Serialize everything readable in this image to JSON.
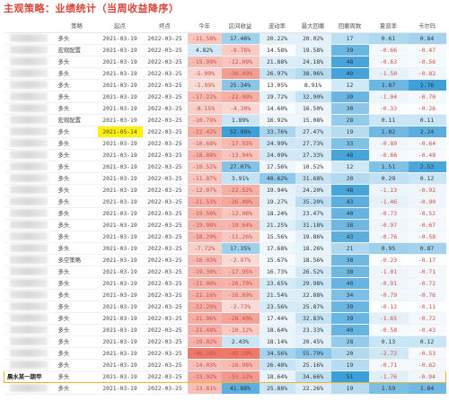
{
  "title": "主观策略：业绩统计（当周收益降序）",
  "headers": [
    "",
    "策略",
    "起点",
    "终点",
    "今年",
    "区间收益",
    "波动率",
    "最大回撤",
    "回撤周数",
    "夏普率",
    "卡尔玛"
  ],
  "rows": [
    {
      "name": "",
      "tag": "多头",
      "start": "2021-03-19",
      "end": "2022-03-25",
      "ytd": "-11.58%",
      "ret": "17.46%",
      "vol": "20.22%",
      "mdd": "20.02%",
      "weeks": "17",
      "sharpe": "0.61",
      "calmar": "0.84"
    },
    {
      "name": "",
      "tag": "宏观配置",
      "start": "2021-03-19",
      "end": "2022-03-25",
      "ytd": "4.82%",
      "ret": "-9.76%",
      "vol": "14.58%",
      "mdd": "19.58%",
      "weeks": "39",
      "sharpe": "-0.66",
      "calmar": "-0.47"
    },
    {
      "name": "",
      "tag": "多头",
      "start": "2021-03-19",
      "end": "2022-03-25",
      "ytd": "-15.99%",
      "ret": "-12.99%",
      "vol": "21.88%",
      "mdd": "24.18%",
      "weeks": "48",
      "sharpe": "-0.63",
      "calmar": "-0.56"
    },
    {
      "name": "",
      "tag": "多头",
      "start": "2021-03-19",
      "end": "2022-03-25",
      "ytd": "-5.99%",
      "ret": "-30.49%",
      "vol": "26.97%",
      "mdd": "38.96%",
      "weeks": "49",
      "sharpe": "-1.50",
      "calmar": "-0.82"
    },
    {
      "name": "",
      "tag": "多头",
      "start": "2021-03-19",
      "end": "2022-03-25",
      "ytd": "-1.99%",
      "ret": "25.34%",
      "vol": "13.05%",
      "mdd": "8.91%",
      "weeks": "12",
      "sharpe": "1.87",
      "calmar": "2.76"
    },
    {
      "name": "",
      "tag": "多头",
      "start": "2021-03-19",
      "end": "2022-03-25",
      "ytd": "-17.22%",
      "ret": "-22.99%",
      "vol": "19.72%",
      "mdd": "32.90%",
      "weeks": "39",
      "sharpe": "-1.04",
      "calmar": "-0.70"
    },
    {
      "name": "",
      "tag": "多头",
      "start": "2021-03-19",
      "end": "2022-03-25",
      "ytd": "-8.15%",
      "ret": "-4.30%",
      "vol": "14.60%",
      "mdd": "16.50%",
      "weeks": "30",
      "sharpe": "-0.33",
      "calmar": "-0.26"
    },
    {
      "name": "",
      "tag": "宏观配置",
      "start": "2021-03-19",
      "end": "2022-03-25",
      "ytd": "-10.79%",
      "ret": "1.89%",
      "vol": "16.92%",
      "mdd": "15.08%",
      "weeks": "28",
      "sharpe": "0.11",
      "calmar": "0.11"
    },
    {
      "name": "",
      "tag": "多头",
      "start": "2021-05-14",
      "end": "2022-03-25",
      "ytd": "-22.42%",
      "ret": "52.98%",
      "vol": "33.76%",
      "mdd": "27.47%",
      "weeks": "19",
      "sharpe": "1.82",
      "calmar": "2.24"
    },
    {
      "name": "",
      "tag": "多头",
      "start": "2021-03-19",
      "end": "2022-03-25",
      "ytd": "-10.68%",
      "ret": "-17.93%",
      "vol": "24.99%",
      "mdd": "27.73%",
      "weeks": "33",
      "sharpe": "-0.89",
      "calmar": "-0.64"
    },
    {
      "name": "",
      "tag": "多头",
      "start": "2021-03-19",
      "end": "2022-03-25",
      "ytd": "-18.88%",
      "ret": "-13.04%",
      "vol": "24.09%",
      "mdd": "27.33%",
      "weeks": "48",
      "sharpe": "-0.66",
      "calmar": "-0.48"
    },
    {
      "name": "",
      "tag": "多头",
      "start": "2021-03-19",
      "end": "2022-03-25",
      "ytd": "-10.52%",
      "ret": "27.07%",
      "vol": "17.56%",
      "mdd": "10.52%",
      "weeks": "12",
      "sharpe": "1.51",
      "calmar": "2.53"
    },
    {
      "name": "",
      "tag": "多头",
      "start": "2021-03-19",
      "end": "2022-03-25",
      "ytd": "-11.87%",
      "ret": "3.91%",
      "vol": "40.62%",
      "mdd": "31.68%",
      "weeks": "20",
      "sharpe": "0.29",
      "calmar": "0.12"
    },
    {
      "name": "",
      "tag": "多头",
      "start": "2021-03-19",
      "end": "2022-03-25",
      "ytd": "-12.07%",
      "ret": "-22.52%",
      "vol": "19.94%",
      "mdd": "24.20%",
      "weeks": "48",
      "sharpe": "-1.13",
      "calmar": "-0.92"
    },
    {
      "name": "",
      "tag": "多头",
      "start": "2021-03-19",
      "end": "2022-03-25",
      "ytd": "-21.53%",
      "ret": "-26.49%",
      "vol": "19.27%",
      "mdd": "35.20%",
      "weeks": "43",
      "sharpe": "-1.46",
      "calmar": "-0.90"
    },
    {
      "name": "",
      "tag": "多头",
      "start": "2021-03-19",
      "end": "2022-03-25",
      "ytd": "-19.50%",
      "ret": "-12.06%",
      "vol": "18.24%",
      "mdd": "23.47%",
      "weeks": "40",
      "sharpe": "-0.73",
      "calmar": "-0.52"
    },
    {
      "name": "",
      "tag": "多头",
      "start": "2021-03-19",
      "end": "2022-03-25",
      "ytd": "-19.98%",
      "ret": "-19.64%",
      "vol": "21.25%",
      "mdd": "31.18%",
      "weeks": "38",
      "sharpe": "-0.97",
      "calmar": "-0.67"
    },
    {
      "name": "",
      "tag": "多头",
      "start": "2021-03-19",
      "end": "2022-03-25",
      "ytd": "-18.29%",
      "ret": "-11.26%",
      "vol": "15.56%",
      "mdd": "19.86%",
      "weeks": "43",
      "sharpe": "-0.76",
      "calmar": "-0.58"
    },
    {
      "name": "",
      "tag": "多头",
      "start": "2021-03-19",
      "end": "2022-03-25",
      "ytd": "-7.72%",
      "ret": "17.35%",
      "vol": "17.68%",
      "mdd": "18.26%",
      "weeks": "21",
      "sharpe": "0.95",
      "calmar": "0.87"
    },
    {
      "name": "",
      "tag": "多空策略",
      "start": "2021-03-19",
      "end": "2022-03-25",
      "ytd": "-16.03%",
      "ret": "-2.97%",
      "vol": "15.67%",
      "mdd": "18.56%",
      "weeks": "38",
      "sharpe": "-0.23",
      "calmar": "-0.17"
    },
    {
      "name": "",
      "tag": "多头",
      "start": "2021-03-19",
      "end": "2022-03-25",
      "ytd": "-19.30%",
      "ret": "-17.95%",
      "vol": "16.73%",
      "mdd": "26.52%",
      "weeks": "38",
      "sharpe": "-1.01",
      "calmar": "-0.71"
    },
    {
      "name": "",
      "tag": "多头",
      "start": "2021-03-19",
      "end": "2022-03-25",
      "ytd": "-21.00%",
      "ret": "-20.79%",
      "vol": "23.65%",
      "mdd": "29.98%",
      "weeks": "40",
      "sharpe": "-0.91",
      "calmar": "-0.72"
    },
    {
      "name": "",
      "tag": "多头",
      "start": "2021-03-19",
      "end": "2022-03-25",
      "ytd": "-21.16%",
      "ret": "-16.89%",
      "vol": "21.54%",
      "mdd": "22.88%",
      "weeks": "34",
      "sharpe": "-0.79",
      "calmar": "-0.76"
    },
    {
      "name": "",
      "tag": "多头",
      "start": "2021-03-19",
      "end": "2022-03-25",
      "ytd": "-22.29%",
      "ret": "-2.73%",
      "vol": "23.56%",
      "mdd": "25.87%",
      "weeks": "39",
      "sharpe": "-0.12",
      "calmar": "-0.11"
    },
    {
      "name": "",
      "tag": "多头",
      "start": "2021-03-19",
      "end": "2022-03-25",
      "ytd": "-21.96%",
      "ret": "-28.40%",
      "vol": "17.44%",
      "mdd": "32.83%",
      "weeks": "39",
      "sharpe": "-1.65",
      "calmar": "-0.72"
    },
    {
      "name": "",
      "tag": "多头",
      "start": "2021-03-19",
      "end": "2022-03-25",
      "ytd": "-21.48%",
      "ret": "-10.12%",
      "vol": "18.64%",
      "mdd": "23.33%",
      "weeks": "40",
      "sharpe": "-0.58",
      "calmar": "-0.43"
    },
    {
      "name": "",
      "tag": "多头",
      "start": "2021-03-19",
      "end": "2022-03-25",
      "ytd": "-19.82%",
      "ret": "2.43%",
      "vol": "18.14%",
      "mdd": "20.45%",
      "weeks": "28",
      "sharpe": "0.13",
      "calmar": "0.12"
    },
    {
      "name": "",
      "tag": "多头",
      "start": "2021-03-19",
      "end": "2022-03-25",
      "ytd": "-46.38%",
      "ret": "-48.20%",
      "vol": "34.56%",
      "mdd": "55.79%",
      "weeks": "20",
      "sharpe": "-2.72",
      "calmar": "-0.53"
    },
    {
      "name": "",
      "tag": "多头",
      "start": "2021-03-19",
      "end": "2022-03-25",
      "ytd": "-14.03%",
      "ret": "-16.98%",
      "vol": "26.48%",
      "mdd": "25.16%",
      "weeks": "19",
      "sharpe": "-0.71",
      "calmar": "-0.62"
    },
    {
      "name": "晨水某一期甲",
      "tag": "多头",
      "start": "2021-03-19",
      "end": "2022-03-25",
      "ytd": "-23.92%",
      "ret": "-33.12%",
      "vol": "18.64%",
      "mdd": "34.66%",
      "weeks": "51",
      "sharpe": "-1.76",
      "calmar": "-0.94"
    },
    {
      "name": "",
      "tag": "多头",
      "start": "2021-03-19",
      "end": "2022-03-25",
      "ytd": "-13.81%",
      "ret": "41.88%",
      "vol": "25.88%",
      "mdd": "22.26%",
      "weeks": "19",
      "sharpe": "1.59",
      "calmar": "1.84"
    }
  ],
  "highlight_date_row": 8,
  "highlight_box_row": 29,
  "colors": {
    "neg_bg": "#f7c9c3",
    "pos_bg": "#b9dff3",
    "deep_blue": "#3d9fd8",
    "deep_red": "#eb7a6c",
    "highlight": "#fff200",
    "box": "#f0b429"
  }
}
